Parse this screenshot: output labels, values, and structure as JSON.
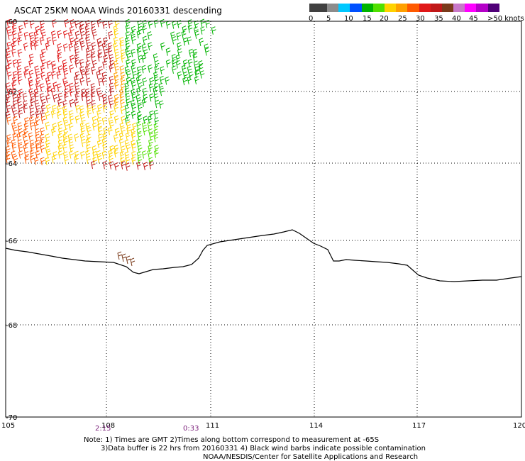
{
  "header": {
    "title": "ASCAT 25KM NOAA Winds 20160331 descending"
  },
  "scale": {
    "colors": [
      "#404040",
      "#8c8c8c",
      "#00c8ff",
      "#0050ff",
      "#00b400",
      "#50e000",
      "#ffd200",
      "#ffa000",
      "#ff5a00",
      "#e01818",
      "#c01818",
      "#7a3a1a",
      "#c878c8",
      "#ff00ff",
      "#b400c8",
      "#500078"
    ],
    "labels": [
      "0",
      "5",
      "10",
      "15",
      "20",
      "25",
      "30",
      "35",
      "40",
      "45",
      ">50 knots"
    ]
  },
  "axes": {
    "lat_labels": [
      "-60",
      "-62",
      "-64",
      "-66",
      "-68",
      "-70"
    ],
    "lon_labels": [
      "105",
      "108",
      "111",
      "114",
      "117",
      "120"
    ]
  },
  "times": [
    "2:15",
    "0:33"
  ],
  "notes": [
    "Note: 1) Times are GMT 2)Times along bottom correspond to measurement at -65S",
    "3)Data buffer is 22 hrs from 20160331 4) Black wind barbs indicate possible contamination",
    "NOAA/NESDIS/Center for Satellite Applications and Research"
  ]
}
